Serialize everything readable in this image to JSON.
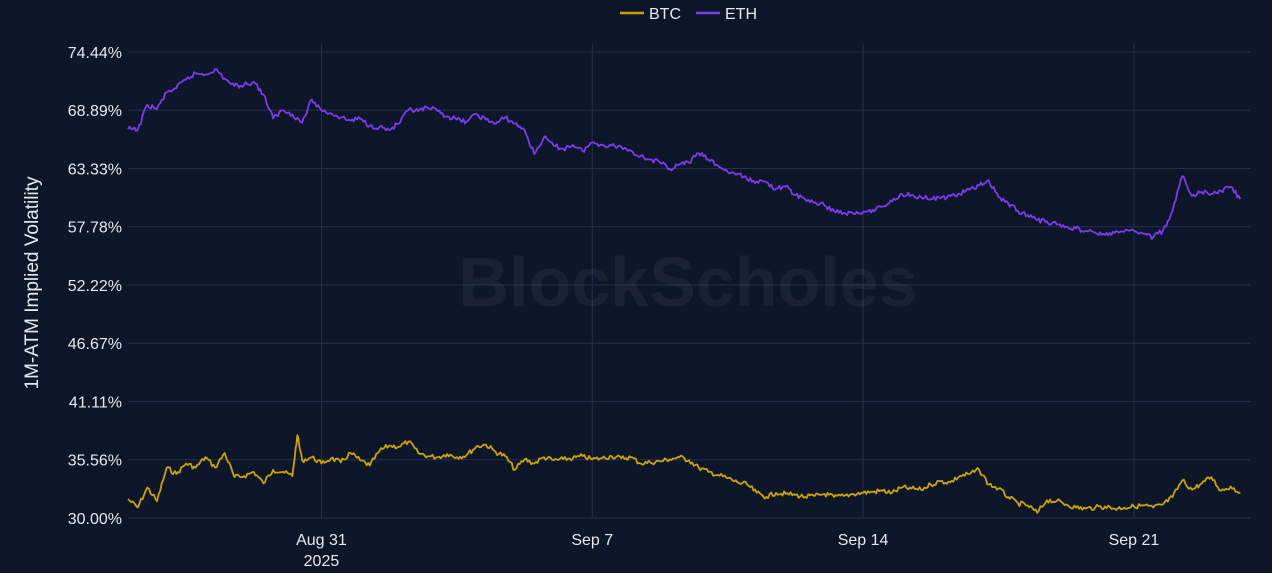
{
  "chart_data": {
    "type": "line",
    "title": "",
    "watermark": "BlockScholes",
    "ylabel": "1M-ATM Implied Volatility",
    "xlabel": "",
    "ylim": [
      30.0,
      74.44
    ],
    "xlim": [
      "2025-08-26",
      "2025-09-24"
    ],
    "yticks": [
      "74.44%",
      "68.89%",
      "63.33%",
      "57.78%",
      "52.22%",
      "46.67%",
      "41.11%",
      "35.56%",
      "30.00%"
    ],
    "ytick_values": [
      74.44,
      68.89,
      63.33,
      57.78,
      52.22,
      46.67,
      41.11,
      35.56,
      30.0
    ],
    "xticks": [
      {
        "date": "2025-08-31",
        "label": "Aug 31",
        "sublabel": "2025"
      },
      {
        "date": "2025-09-07",
        "label": "Sep 7",
        "sublabel": ""
      },
      {
        "date": "2025-09-14",
        "label": "Sep 14",
        "sublabel": ""
      },
      {
        "date": "2025-09-21",
        "label": "Sep 21",
        "sublabel": ""
      }
    ],
    "grid": true,
    "legend_position": "top-center",
    "background": "#0e1629",
    "grid_color": "#24304d",
    "text_color": "#e6e9f0",
    "series": [
      {
        "name": "BTC",
        "color": "#c9a400",
        "points": [
          [
            "2025-08-26",
            31.8
          ],
          [
            "2025-08-26 06:00",
            31.0
          ],
          [
            "2025-08-26 12:00",
            32.9
          ],
          [
            "2025-08-26 18:00",
            31.6
          ],
          [
            "2025-08-27",
            34.8
          ],
          [
            "2025-08-27 06:00",
            34.2
          ],
          [
            "2025-08-27 12:00",
            35.2
          ],
          [
            "2025-08-27 18:00",
            34.8
          ],
          [
            "2025-08-28",
            35.8
          ],
          [
            "2025-08-28 06:00",
            34.8
          ],
          [
            "2025-08-28 12:00",
            36.2
          ],
          [
            "2025-08-28 18:00",
            33.9
          ],
          [
            "2025-08-29",
            34.0
          ],
          [
            "2025-08-29 06:00",
            34.4
          ],
          [
            "2025-08-29 12:00",
            33.3
          ],
          [
            "2025-08-29 18:00",
            34.6
          ],
          [
            "2025-08-30",
            34.4
          ],
          [
            "2025-08-30 06:00",
            34.0
          ],
          [
            "2025-08-30 09:00",
            37.9
          ],
          [
            "2025-08-30 12:00",
            35.5
          ],
          [
            "2025-08-30 18:00",
            35.8
          ],
          [
            "2025-08-31",
            35.2
          ],
          [
            "2025-08-31 06:00",
            35.7
          ],
          [
            "2025-08-31 12:00",
            35.3
          ],
          [
            "2025-08-31 18:00",
            36.2
          ],
          [
            "2025-09-01",
            35.5
          ],
          [
            "2025-09-01 06:00",
            35.0
          ],
          [
            "2025-09-01 12:00",
            36.4
          ],
          [
            "2025-09-01 18:00",
            36.9
          ],
          [
            "2025-09-02",
            36.8
          ],
          [
            "2025-09-02 06:00",
            37.3
          ],
          [
            "2025-09-02 12:00",
            36.2
          ],
          [
            "2025-09-02 18:00",
            35.9
          ],
          [
            "2025-09-03",
            35.8
          ],
          [
            "2025-09-03 06:00",
            36.1
          ],
          [
            "2025-09-03 12:00",
            35.8
          ],
          [
            "2025-09-03 18:00",
            36.0
          ],
          [
            "2025-09-04",
            36.8
          ],
          [
            "2025-09-04 06:00",
            37.0
          ],
          [
            "2025-09-04 12:00",
            36.3
          ],
          [
            "2025-09-04 18:00",
            35.9
          ],
          [
            "2025-09-05",
            34.6
          ],
          [
            "2025-09-05 06:00",
            35.6
          ],
          [
            "2025-09-05 12:00",
            35.2
          ],
          [
            "2025-09-05 18:00",
            35.8
          ],
          [
            "2025-09-06",
            35.5
          ],
          [
            "2025-09-06 06:00",
            35.6
          ],
          [
            "2025-09-06 12:00",
            35.7
          ],
          [
            "2025-09-06 18:00",
            35.9
          ],
          [
            "2025-09-07",
            35.6
          ],
          [
            "2025-09-07 06:00",
            35.7
          ],
          [
            "2025-09-07 12:00",
            35.9
          ],
          [
            "2025-09-07 18:00",
            35.7
          ],
          [
            "2025-09-08",
            35.8
          ],
          [
            "2025-09-08 06:00",
            35.2
          ],
          [
            "2025-09-08 12:00",
            35.3
          ],
          [
            "2025-09-08 18:00",
            35.4
          ],
          [
            "2025-09-09",
            35.6
          ],
          [
            "2025-09-09 06:00",
            35.8
          ],
          [
            "2025-09-09 12:00",
            35.5
          ],
          [
            "2025-09-09 18:00",
            34.8
          ],
          [
            "2025-09-10",
            34.4
          ],
          [
            "2025-09-10 06:00",
            34.1
          ],
          [
            "2025-09-10 12:00",
            33.8
          ],
          [
            "2025-09-10 18:00",
            33.4
          ],
          [
            "2025-09-11",
            33.2
          ],
          [
            "2025-09-11 06:00",
            32.4
          ],
          [
            "2025-09-11 12:00",
            32.0
          ],
          [
            "2025-09-11 18:00",
            32.4
          ],
          [
            "2025-09-12",
            32.3
          ],
          [
            "2025-09-12 06:00",
            32.2
          ],
          [
            "2025-09-12 12:00",
            32.0
          ],
          [
            "2025-09-12 18:00",
            32.1
          ],
          [
            "2025-09-13",
            32.3
          ],
          [
            "2025-09-13 06:00",
            32.0
          ],
          [
            "2025-09-13 12:00",
            32.1
          ],
          [
            "2025-09-13 18:00",
            32.3
          ],
          [
            "2025-09-14",
            32.4
          ],
          [
            "2025-09-14 06:00",
            32.5
          ],
          [
            "2025-09-14 12:00",
            32.6
          ],
          [
            "2025-09-14 18:00",
            32.4
          ],
          [
            "2025-09-15",
            32.9
          ],
          [
            "2025-09-15 06:00",
            32.8
          ],
          [
            "2025-09-15 12:00",
            32.7
          ],
          [
            "2025-09-15 18:00",
            33.2
          ],
          [
            "2025-09-16",
            33.5
          ],
          [
            "2025-09-16 06:00",
            33.4
          ],
          [
            "2025-09-16 12:00",
            34.0
          ],
          [
            "2025-09-16 18:00",
            34.2
          ],
          [
            "2025-09-17",
            34.6
          ],
          [
            "2025-09-17 06:00",
            33.2
          ],
          [
            "2025-09-17 12:00",
            32.8
          ],
          [
            "2025-09-17 18:00",
            32.0
          ],
          [
            "2025-09-18",
            31.4
          ],
          [
            "2025-09-18 06:00",
            31.2
          ],
          [
            "2025-09-18 12:00",
            30.5
          ],
          [
            "2025-09-18 18:00",
            31.7
          ],
          [
            "2025-09-19",
            31.6
          ],
          [
            "2025-09-19 06:00",
            31.3
          ],
          [
            "2025-09-19 12:00",
            31.0
          ],
          [
            "2025-09-19 18:00",
            30.9
          ],
          [
            "2025-09-20",
            31.0
          ],
          [
            "2025-09-20 06:00",
            31.1
          ],
          [
            "2025-09-20 12:00",
            30.9
          ],
          [
            "2025-09-20 18:00",
            31.0
          ],
          [
            "2025-09-21",
            31.1
          ],
          [
            "2025-09-21 06:00",
            31.2
          ],
          [
            "2025-09-21 12:00",
            31.0
          ],
          [
            "2025-09-21 18:00",
            31.3
          ],
          [
            "2025-09-22",
            32.0
          ],
          [
            "2025-09-22 06:00",
            33.6
          ],
          [
            "2025-09-22 12:00",
            32.7
          ],
          [
            "2025-09-22 18:00",
            33.3
          ],
          [
            "2025-09-23",
            33.9
          ],
          [
            "2025-09-23 06:00",
            32.6
          ],
          [
            "2025-09-23 12:00",
            33.0
          ],
          [
            "2025-09-23 18:00",
            32.4
          ]
        ]
      },
      {
        "name": "ETH",
        "color": "#7c3aed",
        "points": [
          [
            "2025-08-26",
            67.1
          ],
          [
            "2025-08-26 06:00",
            67.0
          ],
          [
            "2025-08-26 12:00",
            69.4
          ],
          [
            "2025-08-26 18:00",
            69.0
          ],
          [
            "2025-08-27",
            70.6
          ],
          [
            "2025-08-27 06:00",
            71.0
          ],
          [
            "2025-08-27 12:00",
            71.8
          ],
          [
            "2025-08-27 18:00",
            72.4
          ],
          [
            "2025-08-28",
            72.3
          ],
          [
            "2025-08-28 06:00",
            72.8
          ],
          [
            "2025-08-28 12:00",
            71.9
          ],
          [
            "2025-08-28 18:00",
            71.2
          ],
          [
            "2025-08-29",
            71.3
          ],
          [
            "2025-08-29 06:00",
            71.6
          ],
          [
            "2025-08-29 12:00",
            70.4
          ],
          [
            "2025-08-29 18:00",
            68.1
          ],
          [
            "2025-08-30",
            68.9
          ],
          [
            "2025-08-30 06:00",
            68.5
          ],
          [
            "2025-08-30 12:00",
            67.7
          ],
          [
            "2025-08-30 18:00",
            69.9
          ],
          [
            "2025-08-31",
            68.9
          ],
          [
            "2025-08-31 06:00",
            68.6
          ],
          [
            "2025-08-31 12:00",
            68.2
          ],
          [
            "2025-08-31 18:00",
            67.9
          ],
          [
            "2025-09-01",
            68.1
          ],
          [
            "2025-09-01 06:00",
            67.4
          ],
          [
            "2025-09-01 12:00",
            67.3
          ],
          [
            "2025-09-01 18:00",
            67.0
          ],
          [
            "2025-09-02",
            67.6
          ],
          [
            "2025-09-02 06:00",
            68.9
          ],
          [
            "2025-09-02 12:00",
            68.8
          ],
          [
            "2025-09-02 18:00",
            69.1
          ],
          [
            "2025-09-03",
            68.8
          ],
          [
            "2025-09-03 06:00",
            68.3
          ],
          [
            "2025-09-03 12:00",
            68.0
          ],
          [
            "2025-09-03 18:00",
            67.8
          ],
          [
            "2025-09-04",
            68.5
          ],
          [
            "2025-09-04 06:00",
            68.0
          ],
          [
            "2025-09-04 12:00",
            67.6
          ],
          [
            "2025-09-04 18:00",
            68.2
          ],
          [
            "2025-09-05",
            67.6
          ],
          [
            "2025-09-05 06:00",
            67.0
          ],
          [
            "2025-09-05 12:00",
            64.7
          ],
          [
            "2025-09-05 18:00",
            66.3
          ],
          [
            "2025-09-06",
            65.5
          ],
          [
            "2025-09-06 06:00",
            65.2
          ],
          [
            "2025-09-06 12:00",
            65.6
          ],
          [
            "2025-09-06 18:00",
            65.0
          ],
          [
            "2025-09-07",
            65.8
          ],
          [
            "2025-09-07 06:00",
            65.6
          ],
          [
            "2025-09-07 12:00",
            65.5
          ],
          [
            "2025-09-07 18:00",
            65.4
          ],
          [
            "2025-09-08",
            65.0
          ],
          [
            "2025-09-08 06:00",
            64.5
          ],
          [
            "2025-09-08 12:00",
            64.2
          ],
          [
            "2025-09-08 18:00",
            63.9
          ],
          [
            "2025-09-09",
            63.3
          ],
          [
            "2025-09-09 06:00",
            63.7
          ],
          [
            "2025-09-09 12:00",
            63.9
          ],
          [
            "2025-09-09 18:00",
            64.8
          ],
          [
            "2025-09-10",
            64.2
          ],
          [
            "2025-09-10 06:00",
            63.6
          ],
          [
            "2025-09-10 12:00",
            63.0
          ],
          [
            "2025-09-10 18:00",
            62.8
          ],
          [
            "2025-09-11",
            62.3
          ],
          [
            "2025-09-11 06:00",
            62.1
          ],
          [
            "2025-09-11 12:00",
            62.0
          ],
          [
            "2025-09-11 18:00",
            61.4
          ],
          [
            "2025-09-12",
            61.6
          ],
          [
            "2025-09-12 06:00",
            60.8
          ],
          [
            "2025-09-12 12:00",
            60.4
          ],
          [
            "2025-09-12 18:00",
            60.1
          ],
          [
            "2025-09-13",
            59.8
          ],
          [
            "2025-09-13 06:00",
            59.3
          ],
          [
            "2025-09-13 12:00",
            59.1
          ],
          [
            "2025-09-13 18:00",
            59.0
          ],
          [
            "2025-09-14",
            59.2
          ],
          [
            "2025-09-14 06:00",
            59.4
          ],
          [
            "2025-09-14 12:00",
            59.7
          ],
          [
            "2025-09-14 18:00",
            60.2
          ],
          [
            "2025-09-15",
            60.9
          ],
          [
            "2025-09-15 06:00",
            60.8
          ],
          [
            "2025-09-15 12:00",
            60.6
          ],
          [
            "2025-09-15 18:00",
            60.4
          ],
          [
            "2025-09-16",
            60.5
          ],
          [
            "2025-09-16 06:00",
            60.7
          ],
          [
            "2025-09-16 12:00",
            60.9
          ],
          [
            "2025-09-16 18:00",
            61.3
          ],
          [
            "2025-09-17",
            61.7
          ],
          [
            "2025-09-17 06:00",
            62.2
          ],
          [
            "2025-09-17 12:00",
            60.6
          ],
          [
            "2025-09-17 18:00",
            60.0
          ],
          [
            "2025-09-18",
            59.3
          ],
          [
            "2025-09-18 06:00",
            58.9
          ],
          [
            "2025-09-18 12:00",
            58.4
          ],
          [
            "2025-09-18 18:00",
            58.3
          ],
          [
            "2025-09-19",
            58.0
          ],
          [
            "2025-09-19 06:00",
            57.8
          ],
          [
            "2025-09-19 12:00",
            57.6
          ],
          [
            "2025-09-19 18:00",
            57.4
          ],
          [
            "2025-09-20",
            57.2
          ],
          [
            "2025-09-20 06:00",
            57.0
          ],
          [
            "2025-09-20 12:00",
            57.2
          ],
          [
            "2025-09-20 18:00",
            57.3
          ],
          [
            "2025-09-21",
            57.4
          ],
          [
            "2025-09-21 06:00",
            57.1
          ],
          [
            "2025-09-21 12:00",
            56.8
          ],
          [
            "2025-09-21 18:00",
            57.4
          ],
          [
            "2025-09-22",
            59.3
          ],
          [
            "2025-09-22 06:00",
            62.6
          ],
          [
            "2025-09-22 12:00",
            60.7
          ],
          [
            "2025-09-22 18:00",
            61.1
          ],
          [
            "2025-09-23",
            60.9
          ],
          [
            "2025-09-23 06:00",
            61.2
          ],
          [
            "2025-09-23 12:00",
            61.6
          ],
          [
            "2025-09-23 18:00",
            60.4
          ]
        ]
      }
    ]
  }
}
